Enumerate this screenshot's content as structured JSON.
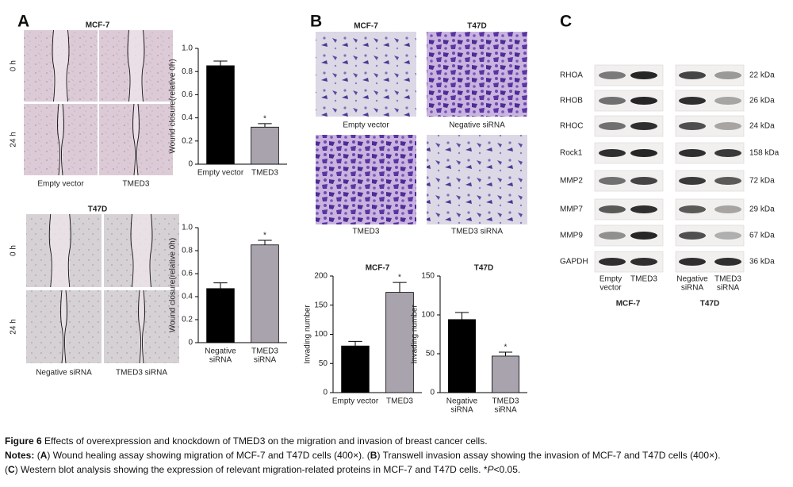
{
  "figure": {
    "A": {
      "label": "A",
      "groups": [
        {
          "title": "MCF-7",
          "rows": [
            "0 h",
            "24 h"
          ],
          "columns": [
            "Empty vector",
            "TMED3"
          ]
        },
        {
          "title": "T47D",
          "rows": [
            "0 h",
            "24 h"
          ],
          "columns": [
            "Negative siRNA",
            "TMED3 siRNA"
          ]
        }
      ]
    },
    "B": {
      "label": "B",
      "columns": [
        "MCF-7",
        "T47D"
      ],
      "images": [
        "Empty vector",
        "Negative siRNA",
        "TMED3",
        "TMED3 siRNA"
      ]
    },
    "C": {
      "label": "C",
      "proteins": [
        "RHOA",
        "RHOB",
        "RHOC",
        "Rock1",
        "MMP2",
        "MMP7",
        "MMP9",
        "GAPDH"
      ],
      "sizes": [
        "22 kDa",
        "26 kDa",
        "24 kDa",
        "158 kDa",
        "72 kDa",
        "29 kDa",
        "67 kDa",
        "36 kDa"
      ],
      "lanes": [
        [
          "Empty",
          "vector"
        ],
        [
          "TMED3"
        ],
        [
          "Negative",
          "siRNA"
        ],
        [
          "TMED3",
          "siRNA"
        ]
      ],
      "groups": [
        "MCF-7",
        "T47D"
      ]
    }
  },
  "chart_data": [
    {
      "type": "bar",
      "y_label": "Wound closure(relative 0h)",
      "categories": [
        "Empty vector",
        "TMED3"
      ],
      "values": [
        0.85,
        0.32
      ],
      "errors": [
        0.04,
        0.03
      ],
      "significance": [
        null,
        "*"
      ],
      "colors": [
        "#000000",
        "#a8a3ad"
      ],
      "ylim": [
        0,
        1
      ],
      "yticks": [
        0,
        0.2,
        0.4,
        0.6,
        0.8,
        {
          "value": 1,
          "label": "1.0"
        }
      ]
    },
    {
      "type": "bar",
      "y_label": "Wound closure(relative 0h)",
      "categories": [
        [
          "Negative",
          "siRNA"
        ],
        [
          "TMED3",
          "siRNA"
        ]
      ],
      "values": [
        0.47,
        0.85
      ],
      "errors": [
        0.05,
        0.04
      ],
      "significance": [
        null,
        "*"
      ],
      "colors": [
        "#000000",
        "#a8a3ad"
      ],
      "ylim": [
        0,
        1
      ],
      "yticks": [
        0,
        0.2,
        0.4,
        0.6,
        0.8,
        {
          "value": 1,
          "label": "1.0"
        }
      ]
    },
    {
      "type": "bar",
      "title": "MCF-7",
      "y_label": "Invading number",
      "categories": [
        "Empty vector",
        "TMED3"
      ],
      "values": [
        80,
        172
      ],
      "errors": [
        8,
        17
      ],
      "significance": [
        null,
        "*"
      ],
      "colors": [
        "#000000",
        "#a8a3ad"
      ],
      "ylim": [
        0,
        200
      ],
      "yticks": [
        0,
        50,
        100,
        150,
        200
      ]
    },
    {
      "type": "bar",
      "title": "T47D",
      "y_label": "Invading number",
      "categories": [
        [
          "Negative",
          "siRNA"
        ],
        [
          "TMED3",
          "siRNA"
        ]
      ],
      "values": [
        94,
        47
      ],
      "errors": [
        9,
        5
      ],
      "significance": [
        null,
        "*"
      ],
      "colors": [
        "#000000",
        "#a8a3ad"
      ],
      "ylim": [
        0,
        150
      ],
      "yticks": [
        0,
        50,
        100,
        150
      ]
    }
  ],
  "caption": {
    "label": "Figure 6",
    "title": "Effects of overexpression and knockdown of TMED3 on the migration and invasion of breast cancer cells.",
    "notes_label": "Notes:",
    "notes": [
      "(",
      "A",
      ") Wound healing assay showing migration of MCF-7 and T47D cells (400×). (",
      "B",
      ") Transwell invasion assay showing the invasion of MCF-7 and T47D cells (400×).",
      "(",
      "C",
      ") Western blot analysis showing the expression of relevant migration-related proteins in MCF-7 and T47D cells. *",
      "P",
      "<0.05."
    ]
  }
}
